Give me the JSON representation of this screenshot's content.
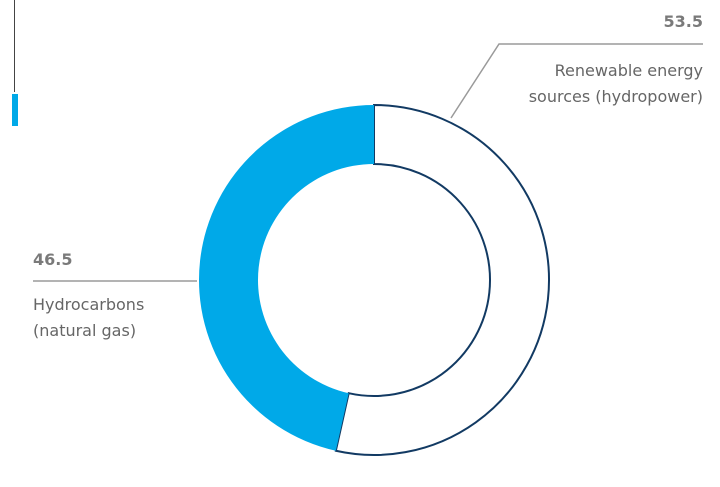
{
  "chart_data": {
    "type": "pie",
    "style": "donut",
    "slices": [
      {
        "label_lines": [
          "Renewable energy",
          "sources (hydropower)"
        ],
        "value": 53.5,
        "value_text": "53.5",
        "color": "#ffffff",
        "outline": "#123a63"
      },
      {
        "label_lines": [
          "Hydrocarbons",
          "(natural gas)"
        ],
        "value": 46.5,
        "value_text": "46.5",
        "color": "#00a9e8"
      }
    ],
    "legend": "none",
    "grid": false
  },
  "colors": {
    "accent": "#00a9e8",
    "outline": "#123a63",
    "leader_line": "#9a9a9a",
    "text": "#666666"
  }
}
